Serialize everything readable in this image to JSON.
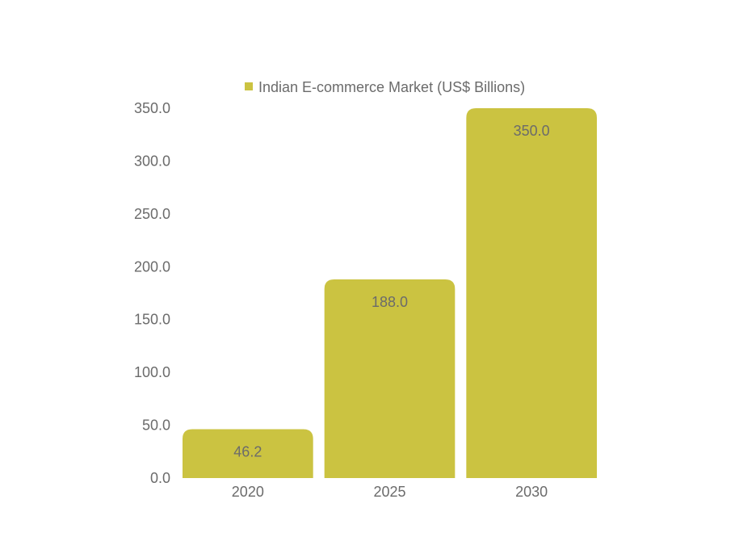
{
  "colors": {
    "bar": "#cbc341",
    "text": "#6b6b6b",
    "background": "#ffffff"
  },
  "legend": {
    "label": "Indian E-commerce Market (US$ Billions)",
    "position": "top"
  },
  "chart_data": {
    "type": "bar",
    "categories": [
      "2020",
      "2025",
      "2030"
    ],
    "series": [
      {
        "name": "Indian E-commerce Market (US$ Billions)",
        "values": [
          46.2,
          188.0,
          350.0
        ]
      }
    ],
    "data_labels": [
      "46.2",
      "188.0",
      "350.0"
    ],
    "y_ticks": [
      "0.0",
      "50.0",
      "100.0",
      "150.0",
      "200.0",
      "250.0",
      "300.0",
      "350.0"
    ],
    "ylim": [
      0,
      350
    ],
    "xlabel": "",
    "ylabel": "",
    "title": "",
    "grid": false
  }
}
